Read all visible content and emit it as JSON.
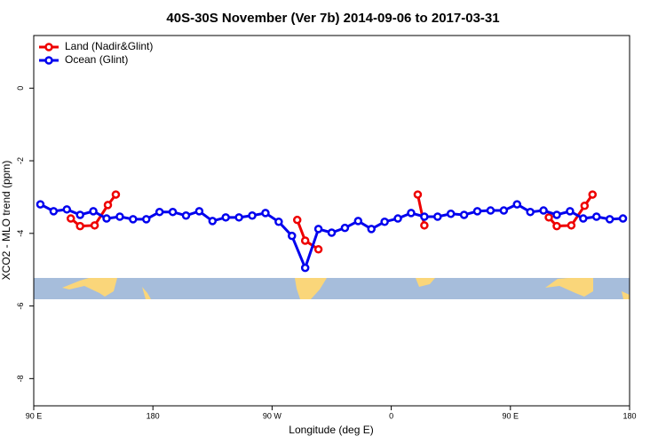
{
  "chart_data": {
    "type": "line",
    "title": "40S-30S November (Ver 7b)   2014-09-06 to 2017-03-31",
    "xlabel": "Longitude (deg E)",
    "ylabel": "XCO2 - MLO trend (ppm)",
    "xlim": [
      90,
      540
    ],
    "ylim": [
      -8.75,
      1.45
    ],
    "xticks": [
      {
        "value": 90,
        "label": "90 E"
      },
      180,
      {
        "value": 270,
        "label": "90 W"
      },
      {
        "value": 360,
        "label": "0"
      },
      {
        "value": 450,
        "label": "90 E"
      },
      {
        "value": 540,
        "label": "180"
      }
    ],
    "yticks": [
      0,
      -2,
      -4,
      -6,
      -8
    ],
    "legend": "top-left",
    "series": [
      {
        "name": "Land (Nadir&Glint)",
        "color": "#ee0000",
        "x": [
          118,
          125,
          136,
          146,
          152,
          null,
          289,
          295,
          305,
          null,
          380,
          385,
          null,
          479,
          485,
          496,
          506,
          512
        ],
        "values": [
          -3.59,
          -3.8,
          -3.78,
          -3.22,
          -2.93,
          null,
          -3.63,
          -4.2,
          -4.44,
          null,
          -2.93,
          -3.78,
          null,
          -3.56,
          -3.8,
          -3.78,
          -3.24,
          -2.93
        ]
      },
      {
        "name": "Ocean (Glint)",
        "color": "#0000ee",
        "x": [
          95,
          105,
          115,
          125,
          135,
          145,
          155,
          165,
          175,
          185,
          195,
          205,
          215,
          225,
          235,
          245,
          255,
          265,
          275,
          285,
          295,
          305,
          315,
          325,
          335,
          345,
          355,
          365,
          375,
          385,
          395,
          405,
          415,
          425,
          435,
          445,
          455,
          465,
          475,
          485,
          495,
          505,
          515,
          525,
          535
        ],
        "values": [
          -3.2,
          -3.39,
          -3.34,
          -3.49,
          -3.39,
          -3.59,
          -3.54,
          -3.61,
          -3.61,
          -3.41,
          -3.41,
          -3.51,
          -3.39,
          -3.66,
          -3.56,
          -3.56,
          -3.51,
          -3.44,
          -3.68,
          -4.07,
          -4.95,
          -3.88,
          -3.98,
          -3.85,
          -3.66,
          -3.88,
          -3.68,
          -3.59,
          -3.44,
          -3.54,
          -3.54,
          -3.46,
          -3.49,
          -3.39,
          -3.37,
          -3.37,
          -3.2,
          -3.41,
          -3.37,
          -3.49,
          -3.39,
          -3.59,
          -3.54,
          -3.61,
          -3.59
        ]
      }
    ]
  }
}
